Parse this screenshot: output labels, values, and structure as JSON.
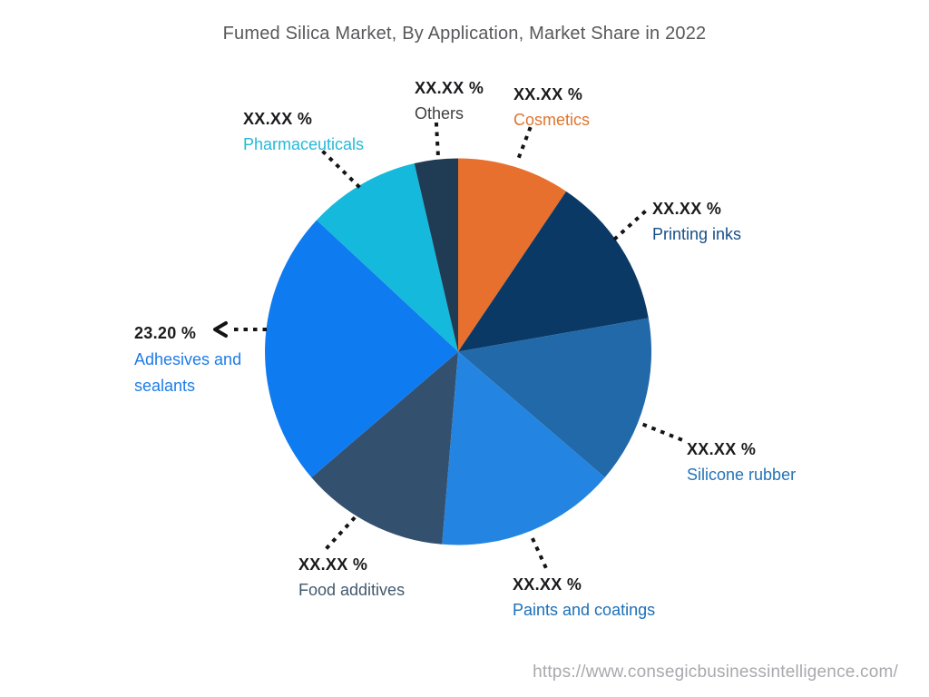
{
  "page": {
    "source_url": "https://www.consegicbusinessintelligence.com/"
  },
  "chart_data": {
    "type": "pie",
    "title": "Fumed Silica Market, By Application, Market Share in 2022",
    "start_angle_deg": 0,
    "direction": "clockwise",
    "legend_position": "outside-labels-with-dotted-leaders",
    "segments": [
      {
        "id": "cosmetics",
        "label": "Cosmetics",
        "display_value": "XX.XX %",
        "share_pct_est": 9.4,
        "share_deg": 34.0,
        "color": "#E7702E",
        "label_color": "#E0752F"
      },
      {
        "id": "printing-inks",
        "label": "Printing inks",
        "display_value": "XX.XX %",
        "share_pct_est": 12.8,
        "share_deg": 46.0,
        "color": "#0B3966",
        "label_color": "#174E88"
      },
      {
        "id": "silicone-rubber",
        "label": "Silicone rubber",
        "display_value": "XX.XX %",
        "share_pct_est": 14.1,
        "share_deg": 50.6,
        "color": "#2169A8",
        "label_color": "#2273B8"
      },
      {
        "id": "paints-and-coatings",
        "label": "Paints and coatings",
        "display_value": "XX.XX %",
        "share_pct_est": 15.0,
        "share_deg": 54.2,
        "color": "#2385E1",
        "label_color": "#1C6FB8"
      },
      {
        "id": "food-additives",
        "label": "Food additives",
        "display_value": "XX.XX %",
        "share_pct_est": 12.4,
        "share_deg": 44.6,
        "color": "#33516F",
        "label_color": "#41586E"
      },
      {
        "id": "adhesives-and-sealants",
        "label": "Adhesives and sealants",
        "display_value": "23.20 %",
        "share_pct_est": 23.2,
        "share_deg": 83.5,
        "color": "#0F7BF0",
        "label_color": "#1E7CE8"
      },
      {
        "id": "pharmaceuticals",
        "label": "Pharmaceuticals",
        "display_value": "XX.XX %",
        "share_pct_est": 9.4,
        "share_deg": 34.0,
        "color": "#14B9DC",
        "label_color": "#25B9D8"
      },
      {
        "id": "others",
        "label": "Others",
        "display_value": "XX.XX %",
        "share_pct_est": 3.7,
        "share_deg": 13.1,
        "color": "#203C55",
        "label_color": "#3F3F3F"
      }
    ]
  }
}
